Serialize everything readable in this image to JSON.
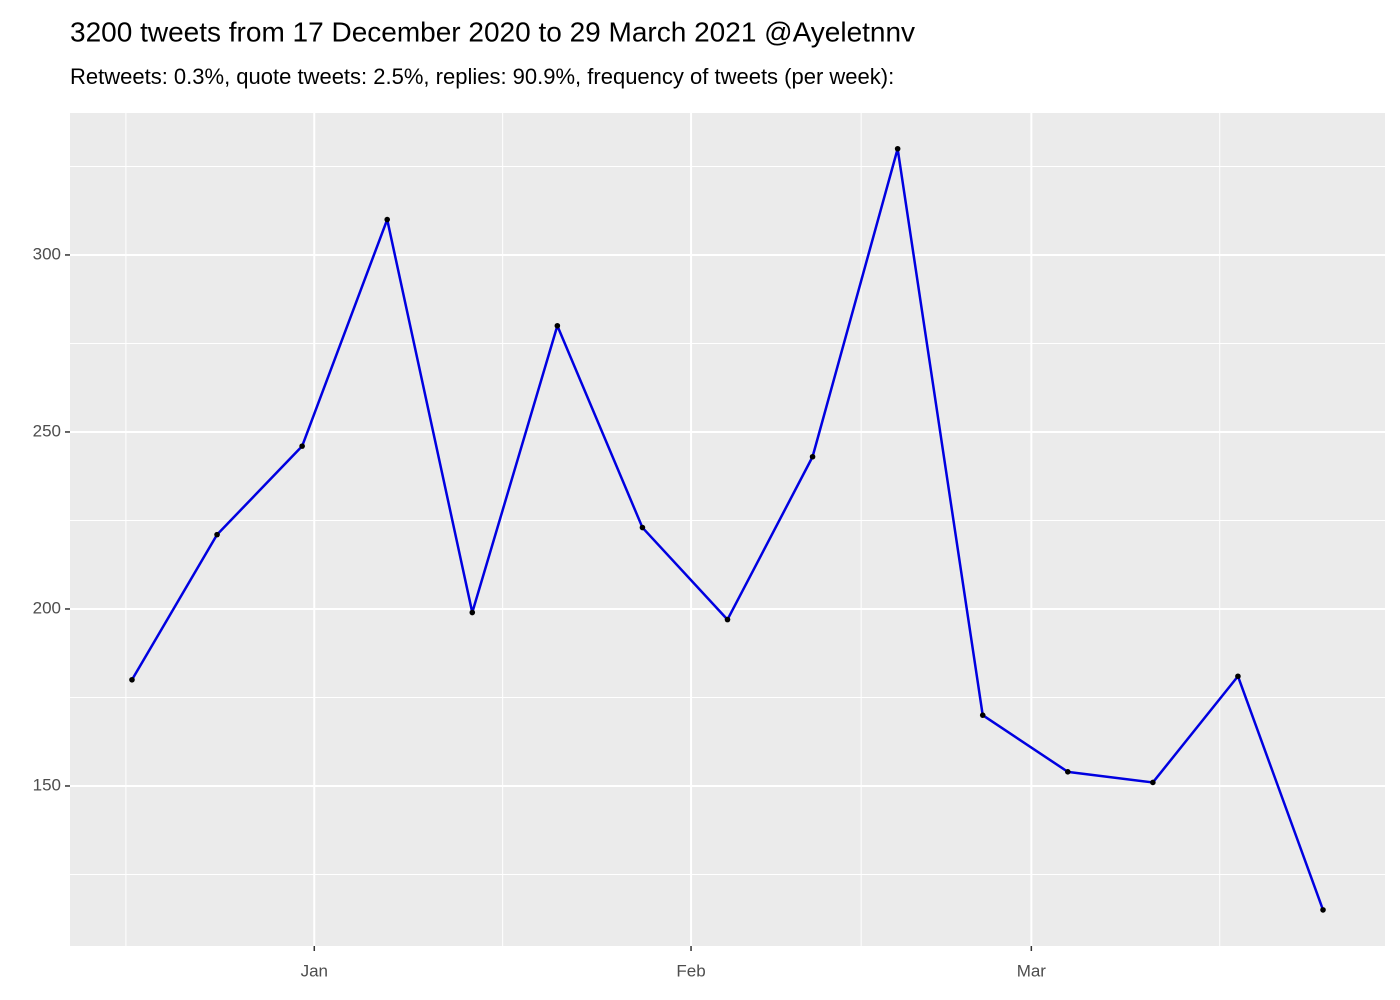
{
  "chart_data": {
    "type": "line",
    "title": "3200 tweets from 17 December 2020 to 29 March 2021 @Ayeletnnv",
    "subtitle": "Retweets: 0.3%, quote tweets: 2.5%, replies: 90.9%, frequency of tweets (per week):",
    "x": [
      -15,
      -8,
      -1,
      6,
      13,
      20,
      27,
      34,
      41,
      48,
      55,
      62,
      69,
      76,
      83
    ],
    "values": [
      180,
      221,
      246,
      310,
      199,
      280,
      223,
      197,
      243,
      330,
      170,
      154,
      151,
      181,
      115
    ],
    "color": "#0000e0",
    "point_color": "#000000",
    "xlim": [
      -20.1,
      88.1
    ],
    "xticks": [
      {
        "value": 0,
        "label": "Jan"
      },
      {
        "value": 31,
        "label": "Feb"
      },
      {
        "value": 59,
        "label": "Mar"
      }
    ],
    "xminorticks": [
      -15.5,
      15.5,
      45,
      74.5
    ],
    "ylim": [
      104.8,
      340.1
    ],
    "yticks": [
      150,
      200,
      250,
      300
    ],
    "yminorticks": [
      125,
      175,
      225,
      275,
      325
    ],
    "grid": true
  }
}
